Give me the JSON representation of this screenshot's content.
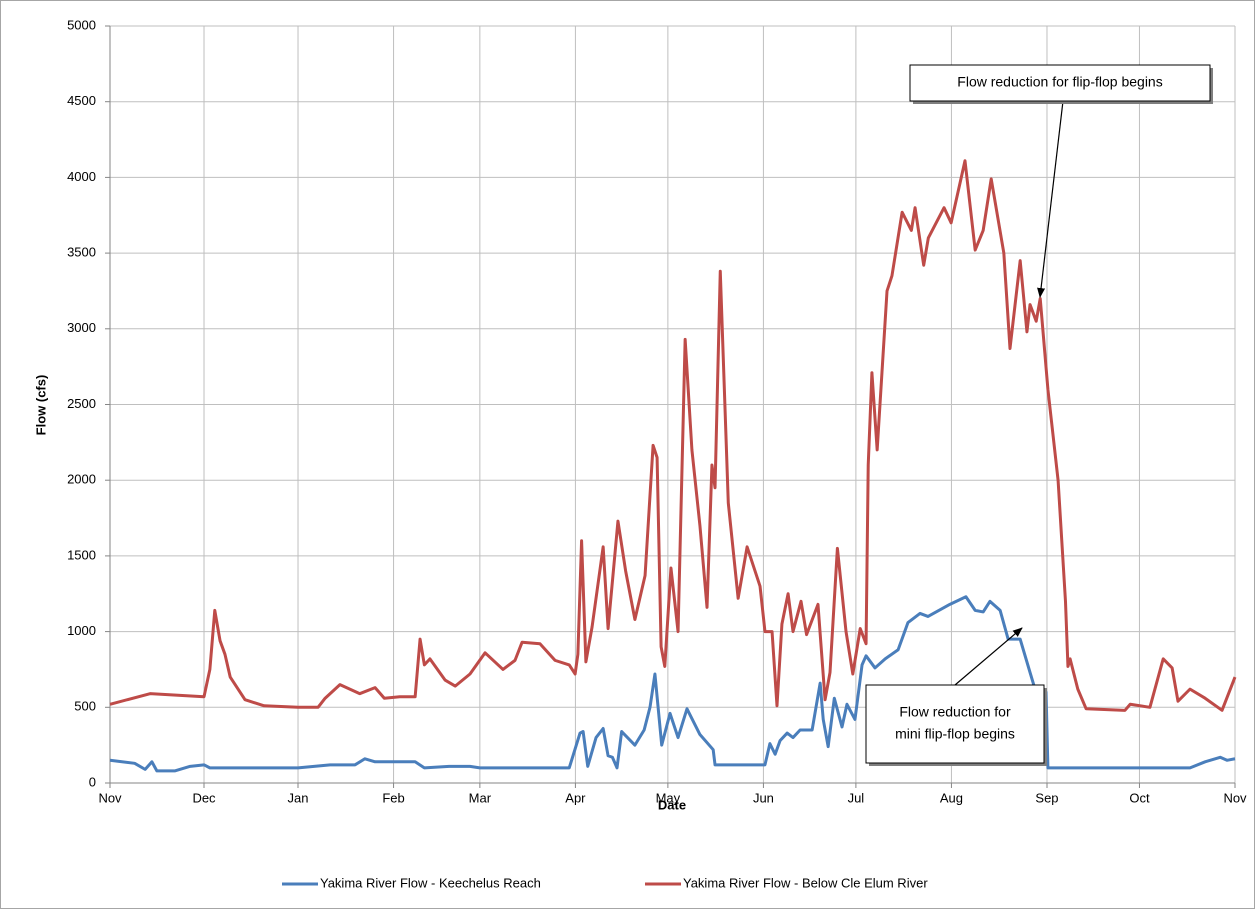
{
  "chart_data": {
    "type": "line",
    "xlabel": "Date",
    "ylabel": "Flow (cfs)",
    "xlim": [
      0,
      365
    ],
    "xticks": [
      {
        "value": 0,
        "label": "Nov"
      },
      {
        "value": 30.5,
        "label": "Dec"
      },
      {
        "value": 61,
        "label": "Jan"
      },
      {
        "value": 92,
        "label": "Feb"
      },
      {
        "value": 120,
        "label": "Mar"
      },
      {
        "value": 151,
        "label": "Apr"
      },
      {
        "value": 181,
        "label": "May"
      },
      {
        "value": 212,
        "label": "Jun"
      },
      {
        "value": 242,
        "label": "Jul"
      },
      {
        "value": 273,
        "label": "Aug"
      },
      {
        "value": 304,
        "label": "Sep"
      },
      {
        "value": 334,
        "label": "Oct"
      },
      {
        "value": 365,
        "label": "Nov"
      }
    ],
    "ylim": [
      0,
      5000
    ],
    "yticks": [
      0,
      500,
      1000,
      1500,
      2000,
      2500,
      3000,
      3500,
      4000,
      4500,
      5000
    ],
    "grid": true,
    "legend": "bottom",
    "series": [
      {
        "name": "Yakima River Flow - Keechelus Reach",
        "color": "#4a7ebb",
        "x": [
          0,
          8,
          11.4,
          13.6,
          15.2,
          21,
          26,
          30.5,
          32.4,
          61,
          71.4,
          79.5,
          82.7,
          86,
          99,
          102,
          110,
          116.8,
          120,
          149,
          152.5,
          153.5,
          155,
          157.7,
          160,
          161.6,
          163,
          164.5,
          166,
          170.3,
          173.3,
          175.2,
          176.8,
          179,
          181.7,
          184.3,
          187.2,
          191.4,
          195.7,
          196.3,
          212.5,
          214.1,
          215.8,
          217.4,
          219.7,
          221.6,
          223.9,
          227.8,
          230.4,
          231.4,
          233,
          235,
          237.5,
          239.1,
          241.7,
          244,
          245.3,
          248.2,
          251.5,
          255.7,
          258.9,
          262.8,
          265.4,
          272.5,
          277.7,
          280.7,
          283.3,
          285.5,
          288.8,
          291.4,
          295.3,
          298.5,
          301,
          301.8,
          303.7,
          304.3,
          350.4,
          355.3,
          360.2,
          362.4,
          365
        ],
        "values": [
          150,
          130,
          90,
          140,
          80,
          80,
          110,
          120,
          100,
          100,
          120,
          120,
          160,
          140,
          140,
          100,
          110,
          110,
          100,
          100,
          330,
          340,
          110,
          300,
          360,
          180,
          170,
          100,
          340,
          250,
          350,
          500,
          720,
          250,
          460,
          300,
          490,
          320,
          220,
          120,
          120,
          260,
          190,
          280,
          330,
          300,
          350,
          350,
          660,
          420,
          240,
          560,
          370,
          520,
          420,
          780,
          840,
          760,
          820,
          880,
          1060,
          1120,
          1100,
          1180,
          1230,
          1140,
          1130,
          1200,
          1140,
          950,
          950,
          730,
          560,
          600,
          600,
          100,
          100,
          140,
          170,
          150,
          160
        ]
      },
      {
        "name": "Yakima River Flow - Below Cle Elum River",
        "color": "#be4b48",
        "x": [
          0,
          13,
          30.5,
          32.4,
          34,
          35.7,
          37.3,
          39,
          43.8,
          50,
          61,
          67.5,
          69.8,
          74.6,
          81,
          86,
          89,
          94,
          99,
          100.6,
          102,
          103.8,
          108.7,
          112,
          116.8,
          121.7,
          127.5,
          131.4,
          133.7,
          139.5,
          144.4,
          149,
          150.9,
          151.8,
          153,
          154.4,
          156.4,
          160,
          161.6,
          164.8,
          167.3,
          170.3,
          173.6,
          176.2,
          177.5,
          178.8,
          180,
          182,
          184.3,
          186.6,
          188.8,
          191.4,
          193.7,
          195.3,
          196.3,
          198,
          200.6,
          203.8,
          206.7,
          210.9,
          212.5,
          214.8,
          216.4,
          218,
          220,
          221.6,
          224.2,
          226,
          229.7,
          232,
          233.6,
          236,
          238.8,
          241,
          243.4,
          245.3,
          246,
          247.2,
          248.9,
          252.1,
          253.7,
          257,
          260,
          261.2,
          264,
          265.5,
          270.6,
          272.9,
          277.4,
          280.7,
          283.3,
          285.9,
          290,
          292,
          295.3,
          297.5,
          298.5,
          300.5,
          301.8,
          304.3,
          307.6,
          310,
          310.8,
          311.5,
          314,
          316.7,
          329.3,
          331,
          337.4,
          341.7,
          344.6,
          346.5,
          350.4,
          355.3,
          360.8,
          365
        ],
        "values": [
          520,
          590,
          570,
          750,
          1140,
          940,
          850,
          700,
          550,
          510,
          500,
          500,
          560,
          650,
          590,
          630,
          560,
          570,
          570,
          950,
          780,
          820,
          680,
          640,
          720,
          860,
          750,
          810,
          930,
          920,
          810,
          780,
          720,
          850,
          1600,
          800,
          1030,
          1560,
          1020,
          1730,
          1400,
          1080,
          1370,
          2230,
          2150,
          900,
          770,
          1420,
          1000,
          2930,
          2200,
          1700,
          1160,
          2100,
          1950,
          3380,
          1850,
          1220,
          1560,
          1300,
          1000,
          1000,
          510,
          1050,
          1250,
          1000,
          1200,
          980,
          1180,
          550,
          730,
          1550,
          1000,
          720,
          1020,
          920,
          2100,
          2710,
          2200,
          3250,
          3350,
          3770,
          3650,
          3800,
          3420,
          3600,
          3800,
          3700,
          4110,
          3520,
          3650,
          3990,
          3500,
          2870,
          3450,
          2980,
          3160,
          3050,
          3200,
          2600,
          2000,
          1200,
          770,
          820,
          620,
          490,
          480,
          520,
          500,
          820,
          760,
          540,
          620,
          560,
          480,
          700
        ]
      }
    ],
    "annotations": [
      {
        "text": [
          "Flow reduction for flip-flop begins"
        ]
      },
      {
        "text": [
          "Flow reduction for",
          "mini flip-flop begins"
        ]
      }
    ]
  }
}
